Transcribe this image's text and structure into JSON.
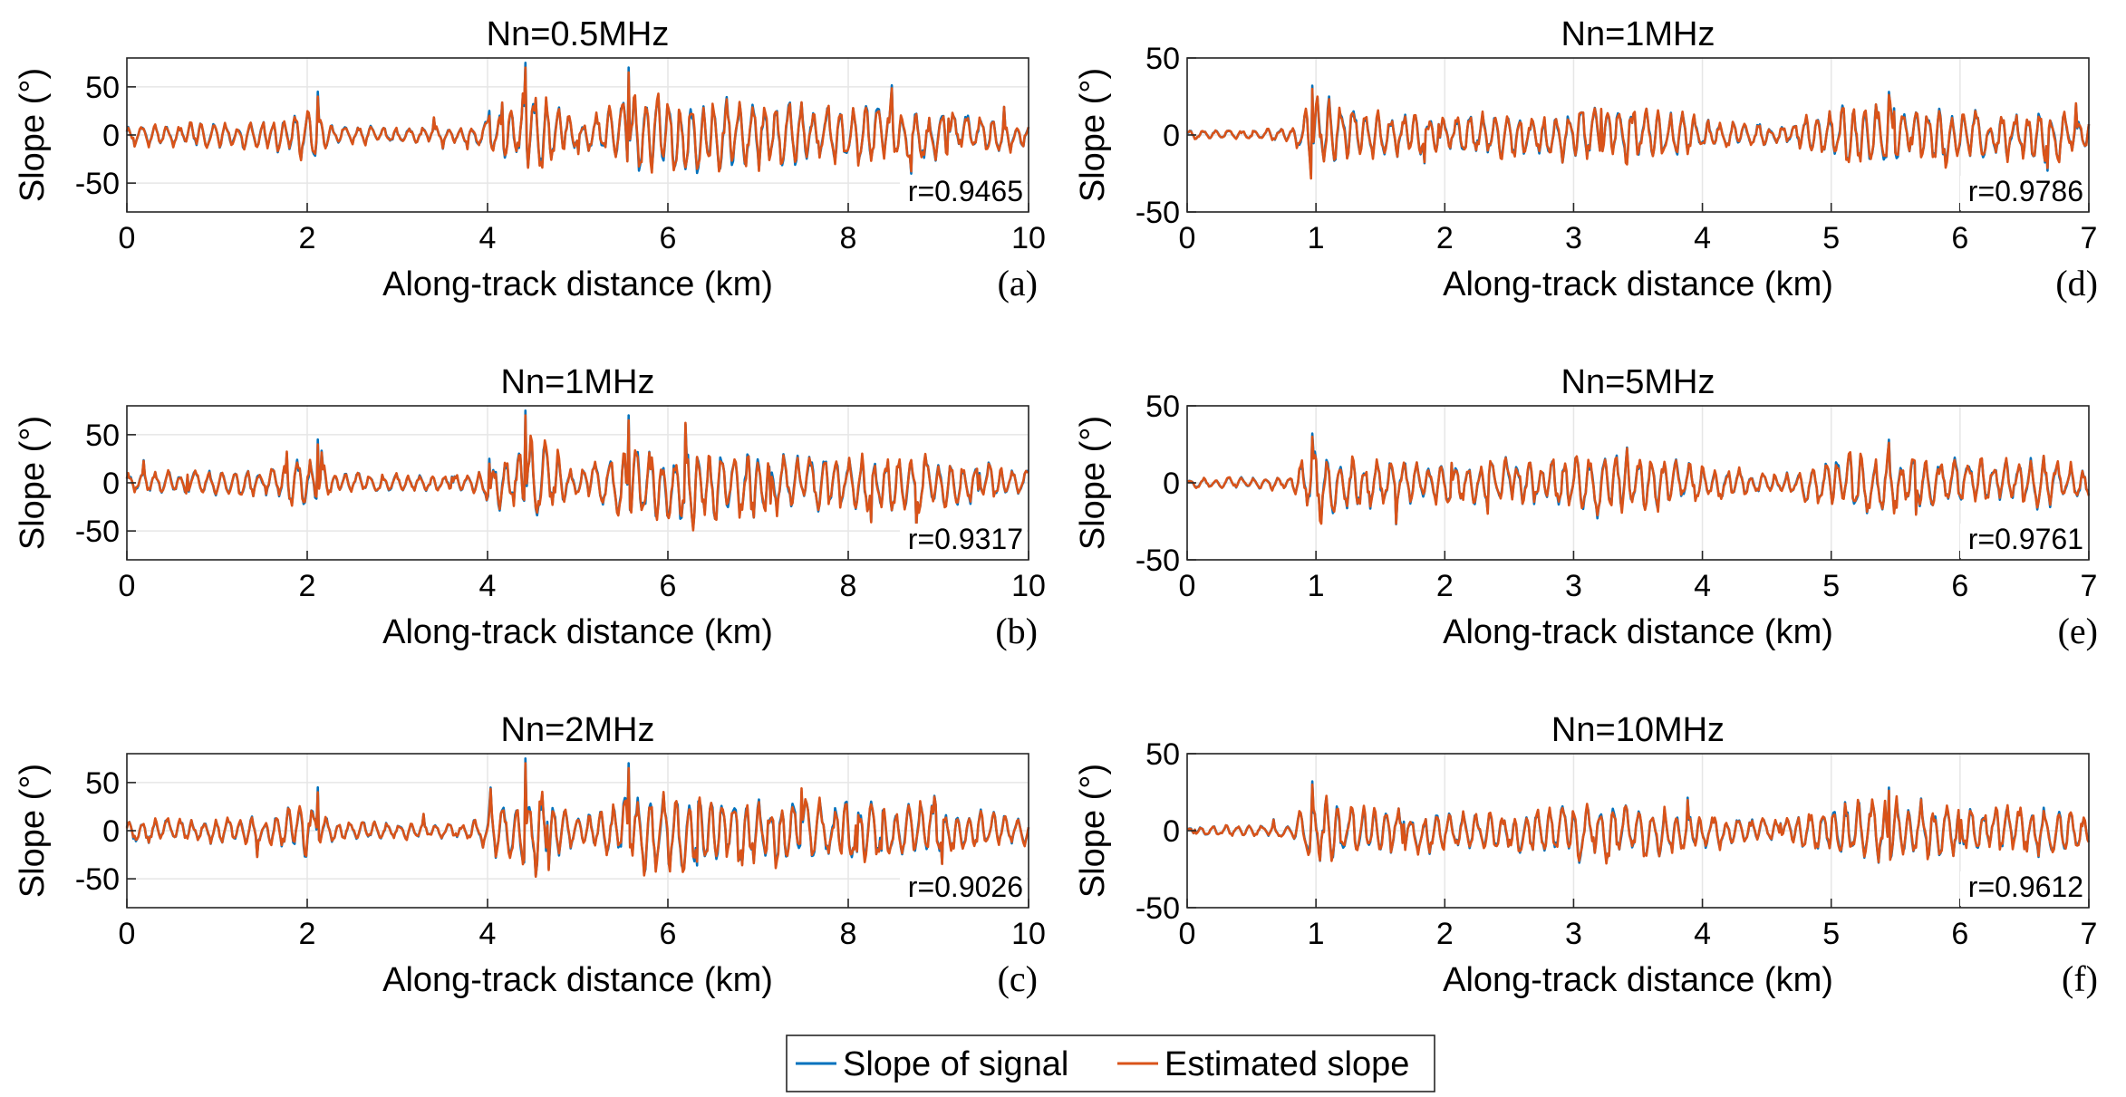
{
  "colors": {
    "signal": "#0072BD",
    "estimated": "#D95319",
    "grid": "#e6e6e6",
    "axis": "#262626"
  },
  "legend": {
    "signal": "Slope of signal",
    "estimated": "Estimated slope"
  },
  "chart_data": [
    {
      "id": "a",
      "type": "line",
      "title": "Nn=0.5MHz",
      "panel_label": "(a)",
      "r_label": "r=0.9465",
      "xlabel": "Along-track distance (km)",
      "ylabel": "Slope (°)",
      "xlim": [
        0,
        10
      ],
      "ylim": [
        -80,
        80
      ],
      "xticks": [
        0,
        2,
        4,
        6,
        8,
        10
      ],
      "yticks": [
        -50,
        0,
        50
      ],
      "seed": 11,
      "grid": true
    },
    {
      "id": "b",
      "type": "line",
      "title": "Nn=1MHz",
      "panel_label": "(b)",
      "r_label": "r=0.9317",
      "xlabel": "Along-track distance (km)",
      "ylabel": "Slope (°)",
      "xlim": [
        0,
        10
      ],
      "ylim": [
        -80,
        80
      ],
      "xticks": [
        0,
        2,
        4,
        6,
        8,
        10
      ],
      "yticks": [
        -50,
        0,
        50
      ],
      "seed": 23,
      "grid": true
    },
    {
      "id": "c",
      "type": "line",
      "title": "Nn=2MHz",
      "panel_label": "(c)",
      "r_label": "r=0.9026",
      "xlabel": "Along-track distance (km)",
      "ylabel": "Slope (°)",
      "xlim": [
        0,
        10
      ],
      "ylim": [
        -80,
        80
      ],
      "xticks": [
        0,
        2,
        4,
        6,
        8,
        10
      ],
      "yticks": [
        -50,
        0,
        50
      ],
      "seed": 37,
      "grid": true
    },
    {
      "id": "d",
      "type": "line",
      "title": "Nn=1MHz",
      "panel_label": "(d)",
      "r_label": "r=0.9786",
      "xlabel": "Along-track distance (km)",
      "ylabel": "Slope (°)",
      "xlim": [
        0,
        7
      ],
      "ylim": [
        -50,
        50
      ],
      "xticks": [
        0,
        1,
        2,
        3,
        4,
        5,
        6,
        7
      ],
      "yticks": [
        -50,
        0,
        50
      ],
      "seed": 41,
      "grid": true
    },
    {
      "id": "e",
      "type": "line",
      "title": "Nn=5MHz",
      "panel_label": "(e)",
      "r_label": "r=0.9761",
      "xlabel": "Along-track distance (km)",
      "ylabel": "Slope (°)",
      "xlim": [
        0,
        7
      ],
      "ylim": [
        -50,
        50
      ],
      "xticks": [
        0,
        1,
        2,
        3,
        4,
        5,
        6,
        7
      ],
      "yticks": [
        -50,
        0,
        50
      ],
      "seed": 53,
      "grid": true
    },
    {
      "id": "f",
      "type": "line",
      "title": "Nn=10MHz",
      "panel_label": "(f)",
      "r_label": "r=0.9612",
      "xlabel": "Along-track distance (km)",
      "ylabel": "Slope (°)",
      "xlim": [
        0,
        7
      ],
      "ylim": [
        -50,
        50
      ],
      "xticks": [
        0,
        1,
        2,
        3,
        4,
        5,
        6,
        7
      ],
      "yticks": [
        -50,
        0,
        50
      ],
      "seed": 67,
      "grid": true
    }
  ]
}
